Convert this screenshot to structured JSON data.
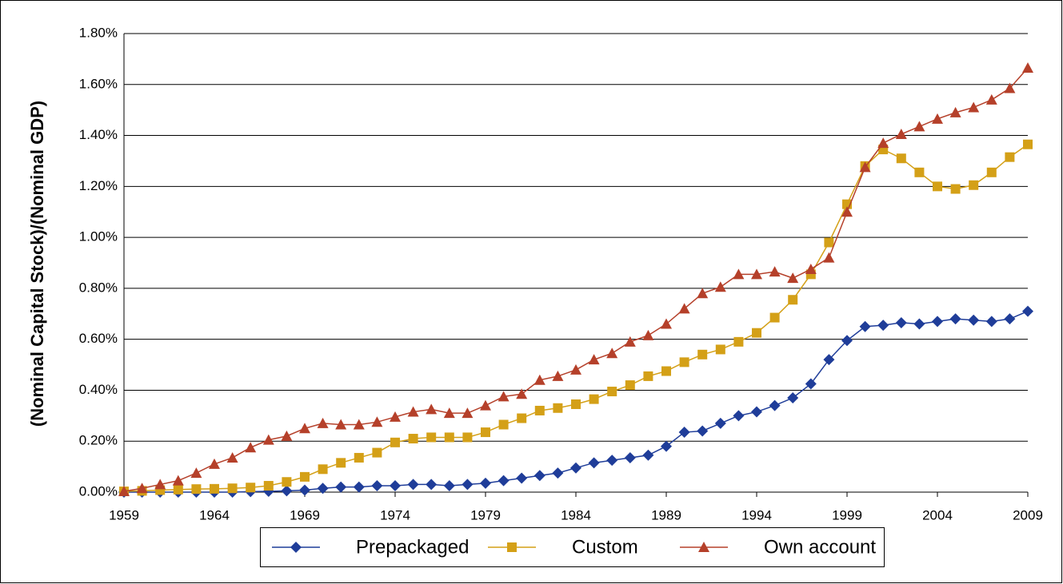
{
  "chart_data": {
    "type": "line",
    "y_label": "(Nominal Capital Stock)/(Nominal GDP)",
    "x": [
      1959,
      1960,
      1961,
      1962,
      1963,
      1964,
      1965,
      1966,
      1967,
      1968,
      1969,
      1970,
      1971,
      1972,
      1973,
      1974,
      1975,
      1976,
      1977,
      1978,
      1979,
      1980,
      1981,
      1982,
      1983,
      1984,
      1985,
      1986,
      1987,
      1988,
      1989,
      1990,
      1991,
      1992,
      1993,
      1994,
      1995,
      1996,
      1997,
      1998,
      1999,
      2000,
      2001,
      2002,
      2003,
      2004,
      2005,
      2006,
      2007,
      2008,
      2009
    ],
    "series": [
      {
        "name": "Prepackaged",
        "color": "#1f3d99",
        "marker": "diamond",
        "values": [
          0,
          0,
          0,
          0,
          0,
          0,
          0,
          0.002,
          0.003,
          0.005,
          0.008,
          0.015,
          0.02,
          0.02,
          0.025,
          0.025,
          0.03,
          0.03,
          0.025,
          0.03,
          0.035,
          0.045,
          0.055,
          0.065,
          0.075,
          0.095,
          0.115,
          0.125,
          0.135,
          0.145,
          0.18,
          0.235,
          0.24,
          0.27,
          0.3,
          0.315,
          0.34,
          0.37,
          0.425,
          0.52,
          0.595,
          0.65,
          0.655,
          0.665,
          0.66,
          0.67,
          0.68,
          0.675,
          0.67,
          0.68,
          0.71
        ]
      },
      {
        "name": "Custom",
        "color": "#d4a017",
        "marker": "square",
        "values": [
          0.003,
          0.005,
          0.008,
          0.01,
          0.012,
          0.013,
          0.015,
          0.018,
          0.025,
          0.04,
          0.06,
          0.09,
          0.115,
          0.135,
          0.155,
          0.195,
          0.21,
          0.215,
          0.215,
          0.215,
          0.235,
          0.265,
          0.29,
          0.32,
          0.33,
          0.345,
          0.365,
          0.395,
          0.42,
          0.455,
          0.475,
          0.51,
          0.54,
          0.56,
          0.59,
          0.625,
          0.685,
          0.755,
          0.855,
          0.98,
          1.13,
          1.28,
          1.345,
          1.31,
          1.255,
          1.2,
          1.19,
          1.205,
          1.255,
          1.315,
          1.365
        ]
      },
      {
        "name": "Own account",
        "color": "#b5402a",
        "marker": "triangle",
        "values": [
          0.003,
          0.015,
          0.03,
          0.045,
          0.075,
          0.11,
          0.135,
          0.175,
          0.205,
          0.22,
          0.25,
          0.27,
          0.265,
          0.265,
          0.275,
          0.295,
          0.315,
          0.325,
          0.31,
          0.31,
          0.34,
          0.375,
          0.385,
          0.44,
          0.455,
          0.48,
          0.52,
          0.545,
          0.59,
          0.615,
          0.66,
          0.72,
          0.78,
          0.805,
          0.855,
          0.855,
          0.865,
          0.84,
          0.875,
          0.92,
          1.1,
          1.275,
          1.37,
          1.405,
          1.435,
          1.465,
          1.49,
          1.51,
          1.54,
          1.585,
          1.665
        ]
      }
    ],
    "xlim": [
      1959,
      2009
    ],
    "xticks": [
      1959,
      1964,
      1969,
      1974,
      1979,
      1984,
      1989,
      1994,
      1999,
      2004,
      2009
    ],
    "ylim": [
      0,
      1.8
    ],
    "yticks": [
      {
        "value": 0,
        "label": "0.00%"
      },
      {
        "value": 0.2,
        "label": "0.20%"
      },
      {
        "value": 0.4,
        "label": "0.40%"
      },
      {
        "value": 0.6,
        "label": "0.60%"
      },
      {
        "value": 0.8,
        "label": "0.80%"
      },
      {
        "value": 1.0,
        "label": "1.00%"
      },
      {
        "value": 1.2,
        "label": "1.20%"
      },
      {
        "value": 1.4,
        "label": "1.40%"
      },
      {
        "value": 1.6,
        "label": "1.60%"
      },
      {
        "value": 1.8,
        "label": "1.80%"
      }
    ],
    "grid": true,
    "legend": "bottom"
  }
}
